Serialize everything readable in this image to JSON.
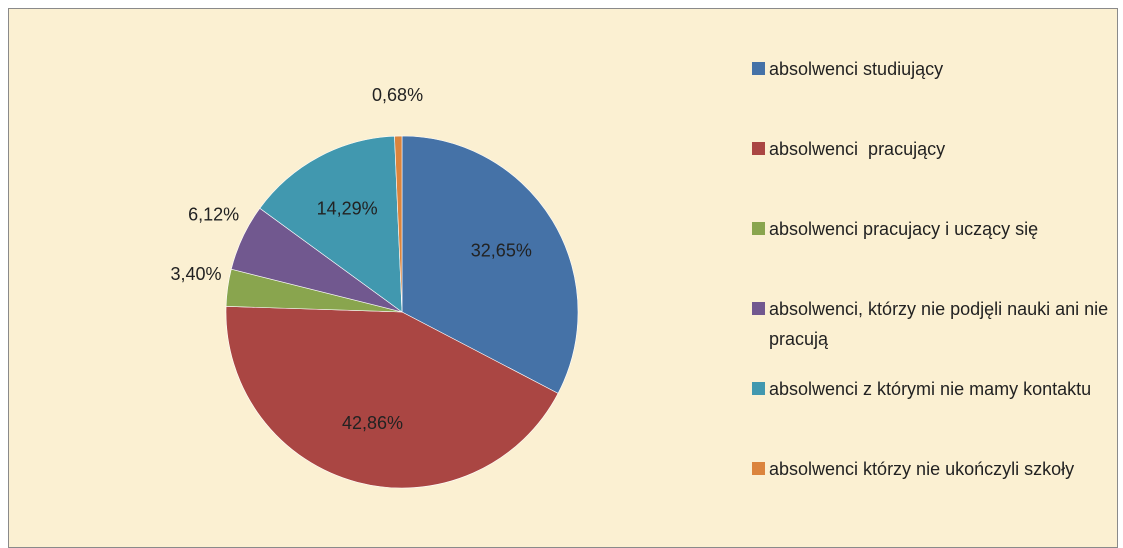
{
  "chart_data": {
    "type": "pie",
    "categories": [
      "absolwenci studiujący",
      "absolwenci  pracujący",
      "absolwenci pracujacy i uczący się",
      "absolwenci, którzy nie podjęli nauki ani nie pracują",
      "absolwenci z którymi nie mamy kontaktu",
      "absolwenci którzy nie ukończyli szkoły"
    ],
    "values": [
      32.65,
      42.86,
      3.4,
      6.12,
      14.29,
      0.68
    ],
    "value_labels": [
      "32,65%",
      "42,86%",
      "3,40%",
      "6,12%",
      "14,29%",
      "0,68%"
    ],
    "colors": [
      "#4572a7",
      "#aa4643",
      "#89a54e",
      "#71588f",
      "#4198af",
      "#db843d"
    ],
    "legend": "right"
  }
}
